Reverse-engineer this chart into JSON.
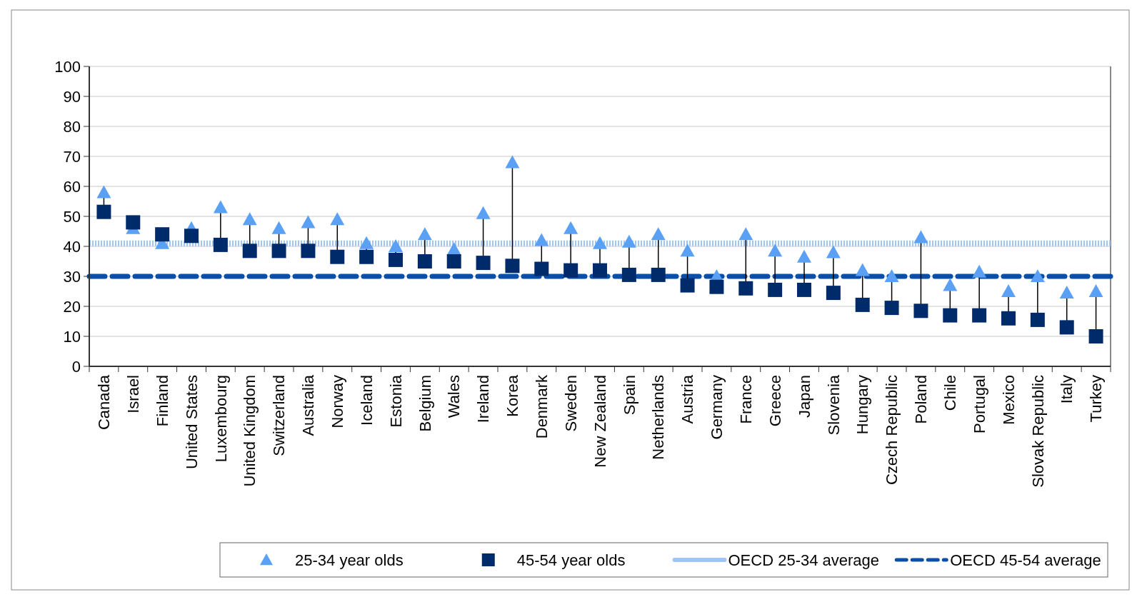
{
  "chart_data": {
    "type": "scatter",
    "categories": [
      "Canada",
      "Israel",
      "Finland",
      "United States",
      "Luxembourg",
      "United Kingdom",
      "Switzerland",
      "Australia",
      "Norway",
      "Iceland",
      "Estonia",
      "Belgium",
      "Wales",
      "Ireland",
      "Korea",
      "Denmark",
      "Sweden",
      "New Zealand",
      "Spain",
      "Netherlands",
      "Austria",
      "Germany",
      "France",
      "Greece",
      "Japan",
      "Slovenia",
      "Hungary",
      "Czech Republic",
      "Poland",
      "Chile",
      "Portugal",
      "Mexico",
      "Slovak Republic",
      "Italy",
      "Turkey"
    ],
    "series": [
      {
        "name": "25-34 year olds",
        "color": "#5aa0f5",
        "marker": "triangle",
        "values": [
          58,
          46,
          41,
          46,
          53,
          49,
          46,
          48,
          49,
          41,
          40,
          44,
          39,
          51,
          68,
          42,
          46,
          41,
          41.5,
          44,
          38.5,
          30,
          44,
          38.5,
          36.5,
          38,
          32,
          30,
          43,
          27,
          31.5,
          25,
          30,
          24.5,
          25
        ]
      },
      {
        "name": "45-54 year olds",
        "color": "#002b6b",
        "marker": "square",
        "values": [
          51.5,
          48,
          44,
          43.5,
          40.5,
          38.5,
          38.5,
          38.5,
          36.5,
          36.5,
          35.5,
          35,
          35,
          34.5,
          33.5,
          32.5,
          32,
          32,
          30.5,
          30.5,
          27,
          26.5,
          26,
          25.5,
          25.5,
          24.5,
          20.5,
          19.5,
          18.5,
          17,
          17,
          16,
          15.5,
          13,
          10
        ]
      }
    ],
    "ref_lines": [
      {
        "axis": "y",
        "value": 41,
        "label": "OECD 25-34 average",
        "color": "#9ec5f7",
        "line_style": "dotted"
      },
      {
        "axis": "y",
        "value": 30,
        "label": "OECD 45-54 average",
        "color": "#0a4ea8",
        "line_style": "dashed"
      }
    ],
    "ylim": [
      0,
      100
    ],
    "yticks": [
      0,
      10,
      20,
      30,
      40,
      50,
      60,
      70,
      80,
      90,
      100
    ],
    "grid": "y",
    "legend": "bottom"
  }
}
